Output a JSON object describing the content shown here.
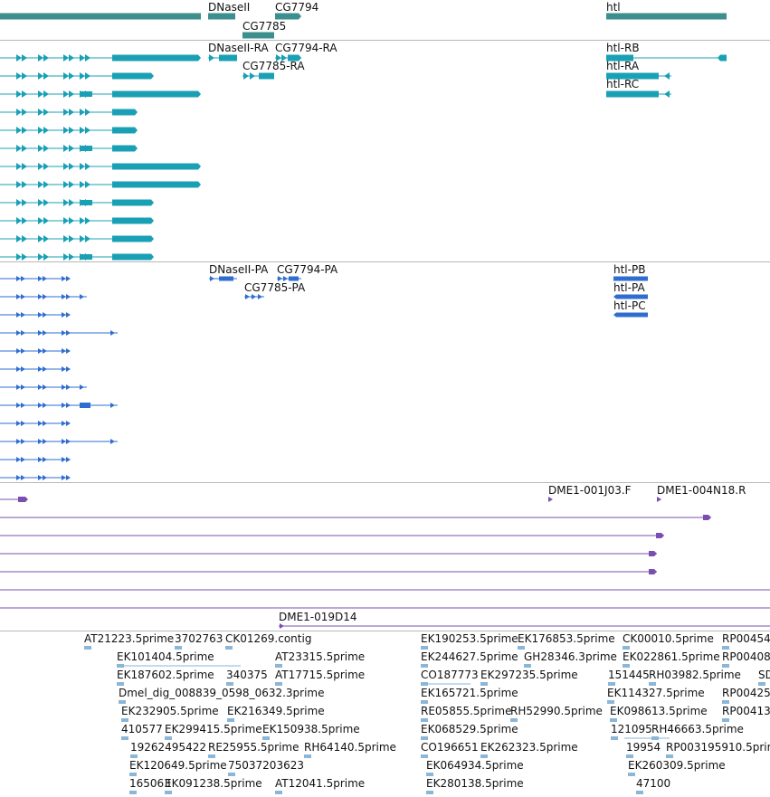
{
  "tracks": {
    "genes": {
      "color": "#3d8f8f",
      "labels": [
        "DNaseII",
        "CG7794",
        "CG7785",
        "htl"
      ]
    },
    "transcripts": {
      "color": "#19a0b5",
      "labels": [
        "DNaseII-RA",
        "CG7794-RA",
        "CG7785-RA",
        "htl-RB",
        "htl-RA",
        "htl-RC"
      ]
    },
    "proteins": {
      "color": "#2f6ed0",
      "labels": [
        "DNaseII-PA",
        "CG7794-PA",
        "CG7785-PA",
        "htl-PB",
        "htl-PA",
        "htl-PC"
      ]
    },
    "clones": {
      "color": "#7a4fb0",
      "labels": [
        "DME1-001J03.F",
        "DME1-004N18.R",
        "DME1-019D14"
      ]
    },
    "ests": {
      "color": "#8ab6d8",
      "labels": [
        "AT21223.5prime",
        "3702763",
        "CK01269.contig",
        "EK101404.5prime",
        "AT23315.5prime",
        "EK187602.5prime",
        "340375",
        "AT17715.5prime",
        "Dmel_dig_008839_0598_0632.3prime",
        "EK232905.5prime",
        "EK216349.5prime",
        "410577",
        "EK299415.5prime",
        "EK150938.5prime",
        "19262495422",
        "RE25955.5prime",
        "RH64140.5prime",
        "EK120649.5prime",
        "75037203623",
        "165063",
        "EK091238.5prime",
        "AT12041.5prime",
        "EK190253.5prime",
        "EK176853.5prime",
        "CK00010.5prime",
        "RP00454",
        "EK244627.5prime",
        "GH28346.3prime",
        "EK022861.5prime",
        "RP00408",
        "CO187773",
        "EK297235.5prime",
        "151445",
        "RH03982.5prime",
        "SD",
        "EK165721.5prime",
        "EK114327.5prime",
        "RP00425",
        "RE05855.5prime",
        "RH52990.5prime",
        "EK098613.5prime",
        "RP00413",
        "EK068529.5prime",
        "121095",
        "RH46663.5prime",
        "CO196651",
        "EK262323.5prime",
        "19954",
        "RP003195910.5prime",
        "EK064934.5prime",
        "EK260309.5prime",
        "EK280138.5prime",
        "47100"
      ]
    }
  }
}
